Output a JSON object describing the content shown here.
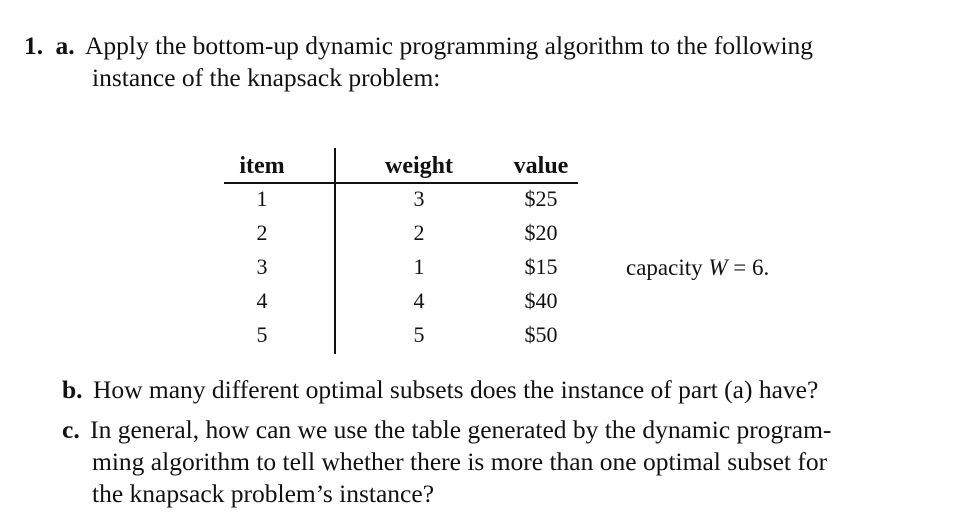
{
  "problem": {
    "number": "1.",
    "part_a": {
      "label": "a.",
      "line1": "Apply the bottom-up dynamic programming algorithm to the following",
      "line2": "instance of the knapsack problem:"
    },
    "table": {
      "headers": [
        "item",
        "weight",
        "value"
      ],
      "rows": [
        [
          "1",
          "3",
          "$25"
        ],
        [
          "2",
          "2",
          "$20"
        ],
        [
          "3",
          "1",
          "$15"
        ],
        [
          "4",
          "4",
          "$40"
        ],
        [
          "5",
          "5",
          "$50"
        ]
      ]
    },
    "capacity": {
      "prefix": "capacity ",
      "var": "W",
      "suffix": " = 6."
    },
    "part_b": {
      "label": "b.",
      "text": "How many different optimal subsets does the instance of part (a) have?"
    },
    "part_c": {
      "label": "c.",
      "line1": "In general, how can we use the table generated by the dynamic program-",
      "line2": "ming algorithm to tell whether there is more than one optimal subset for",
      "line3": "the knapsack problem’s instance?"
    }
  }
}
